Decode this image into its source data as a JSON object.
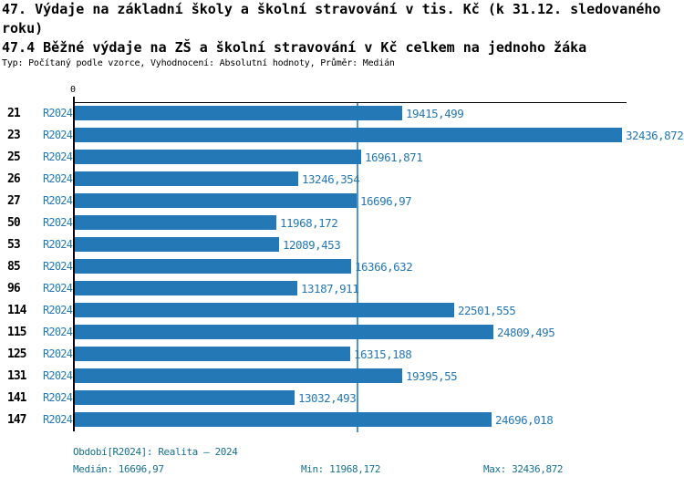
{
  "header": {
    "title_line1": "47. Výdaje na základní školy a školní stravování v tis. Kč (k 31.12. sledovaného",
    "title_line2": "roku)",
    "subtitle": "47.4 Běžné výdaje na ZŠ a školní stravování v Kč celkem na jednoho žáka",
    "meta": "Typ: Počítaný podle vzorce, Vyhodnocení: Absolutní hodnoty, Průměr: Medián"
  },
  "axis": {
    "zero_label": "0"
  },
  "chart_data": {
    "type": "bar",
    "orientation": "horizontal",
    "title": "47. Výdaje na základní školy a školní stravování v tis. Kč (k 31.12. sledovaného roku)",
    "subtitle": "47.4 Běžné výdaje na ZŠ a školní stravování v Kč celkem na jednoho žáka",
    "categories": [
      "21",
      "23",
      "25",
      "26",
      "27",
      "50",
      "53",
      "85",
      "96",
      "114",
      "115",
      "125",
      "131",
      "141",
      "147"
    ],
    "series": [
      {
        "name": "R2024",
        "values": [
          19415.499,
          32436.872,
          16961.871,
          13246.354,
          16696.97,
          11968.172,
          12089.453,
          16366.632,
          13187.911,
          22501.555,
          24809.495,
          16315.188,
          19395.55,
          13032.493,
          24696.018
        ]
      }
    ],
    "value_labels": [
      "19415,499",
      "32436,872",
      "16961,871",
      "13246,354",
      "16696,97",
      "11968,172",
      "12089,453",
      "16366,632",
      "13187,911",
      "22501,555",
      "24809,495",
      "16315,188",
      "19395,55",
      "13032,493",
      "24696,018"
    ],
    "xlabel": "",
    "ylabel": "",
    "xlim": [
      0,
      32436.872
    ],
    "x_ticks": [
      "0"
    ],
    "grid": false,
    "legend_position": "none",
    "median_line": 16696.97,
    "stats": {
      "median": 16696.97,
      "min": 11968.172,
      "max": 32436.872
    }
  },
  "footer": {
    "period": "Období[R2024]: Realita – 2024",
    "median": "Medián: 16696,97",
    "min": "Min: 11968,172",
    "max": "Max: 32436,872"
  },
  "colors": {
    "bar": "#2478b5",
    "median_line": "#4f97cb",
    "footer_text": "#17708f",
    "text": "#000000"
  }
}
